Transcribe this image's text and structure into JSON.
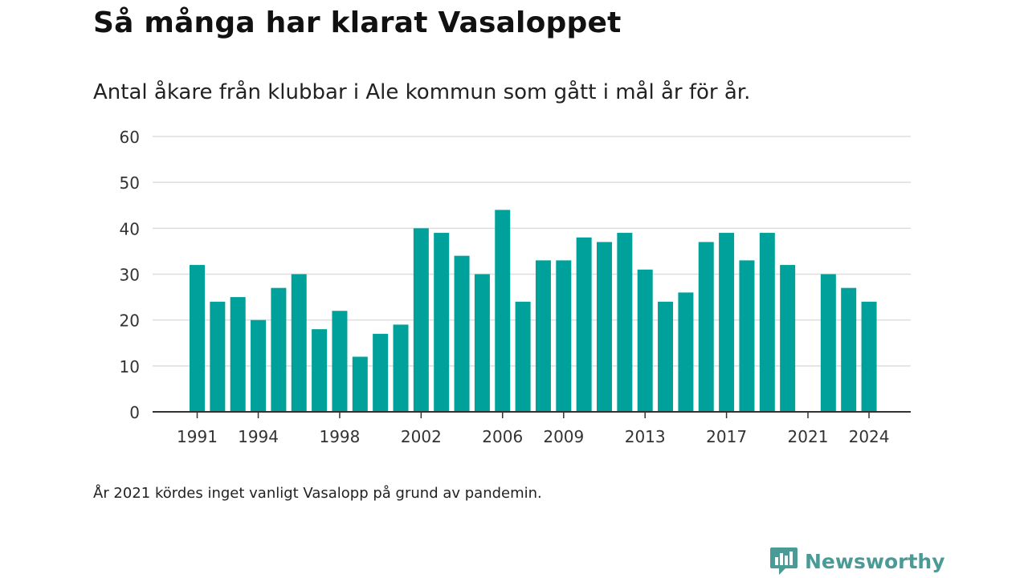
{
  "header": {
    "title": "Så många har klarat Vasaloppet",
    "subtitle": "Antal åkare från klubbar i Ale kommun som gått i mål år för år."
  },
  "footer": {
    "note": "År 2021 kördes inget vanligt Vasalopp på grund av pandemin."
  },
  "brand": {
    "name": "Newsworthy",
    "logo_icon": "newsworthy-chart-bubble-icon",
    "color": "#4a9a96"
  },
  "colors": {
    "bar": "#00a19a",
    "grid": "#dddddd",
    "axis": "#333333"
  },
  "chart_data": {
    "type": "bar",
    "title": "",
    "xlabel": "",
    "ylabel": "",
    "ylim": [
      0,
      60
    ],
    "yticks": [
      0,
      10,
      20,
      30,
      40,
      50,
      60
    ],
    "grid": true,
    "x_tick_labels": [
      1991,
      1994,
      1998,
      2002,
      2006,
      2009,
      2013,
      2017,
      2021,
      2024
    ],
    "categories": [
      1991,
      1992,
      1993,
      1994,
      1995,
      1996,
      1997,
      1998,
      1999,
      2000,
      2001,
      2002,
      2003,
      2004,
      2005,
      2006,
      2007,
      2008,
      2009,
      2010,
      2011,
      2012,
      2013,
      2014,
      2015,
      2016,
      2017,
      2018,
      2019,
      2020,
      2021,
      2022,
      2023,
      2024
    ],
    "values": [
      32,
      24,
      25,
      20,
      27,
      30,
      18,
      22,
      12,
      17,
      19,
      40,
      39,
      34,
      30,
      44,
      24,
      33,
      33,
      38,
      37,
      39,
      31,
      24,
      26,
      37,
      39,
      33,
      39,
      32,
      null,
      30,
      27,
      24
    ]
  }
}
